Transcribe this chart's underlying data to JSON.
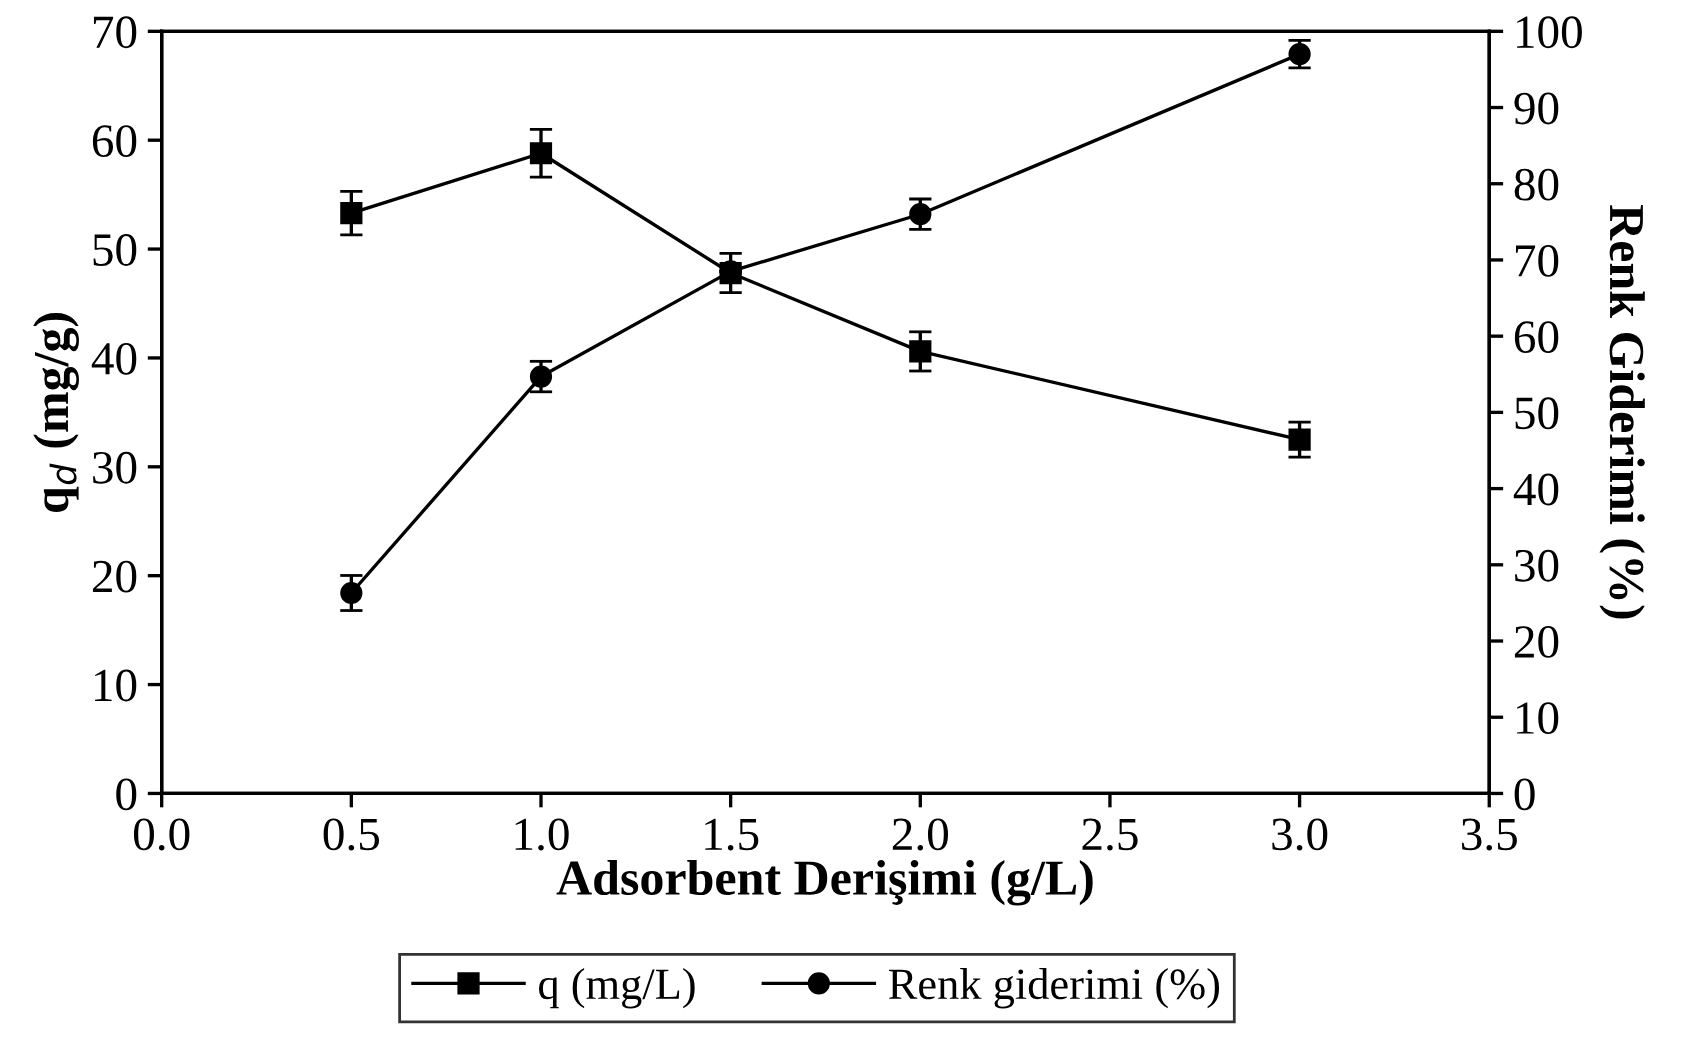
{
  "chart_data": {
    "type": "line",
    "xlabel": "Adsorbent Derişimi (g/L)",
    "ylabel": "q$_{d}$ (mg/g)",
    "y2label": "Renk Giderimi (%)",
    "xlim": [
      0,
      3.5
    ],
    "xticks": [
      {
        "value": 0,
        "label": "0.0"
      },
      {
        "value": 0.5,
        "label": "0.5"
      },
      {
        "value": 1,
        "label": "1.0"
      },
      {
        "value": 1.5,
        "label": "1.5"
      },
      {
        "value": 2,
        "label": "2.0"
      },
      {
        "value": 2.5,
        "label": "2.5"
      },
      {
        "value": 3,
        "label": "3.0"
      },
      {
        "value": 3.5,
        "label": "3.5"
      }
    ],
    "ylim": [
      0,
      70
    ],
    "yticks": [
      0,
      10,
      20,
      30,
      40,
      50,
      60,
      70
    ],
    "y2lim": [
      0,
      100
    ],
    "y2ticks": [
      0,
      10,
      20,
      30,
      40,
      50,
      60,
      70,
      80,
      90,
      100
    ],
    "x": [
      0.5,
      1.0,
      1.5,
      2.0,
      3.0
    ],
    "grid": false,
    "legend": "bottom",
    "line_style": "solid",
    "series": [
      {
        "name": "q (mg/L)",
        "color": "#000000",
        "marker": "square",
        "values": [
          53.3,
          58.8,
          47.8,
          40.6,
          32.5
        ],
        "errors": [
          2.0,
          2.2,
          1.8,
          1.8,
          1.6
        ]
      },
      {
        "name": "Renk giderimi (%)",
        "color": "#000000",
        "marker": "circle",
        "axis": "y2",
        "values": [
          26.3,
          54.7,
          68.5,
          76.0,
          97.0
        ],
        "errors": [
          2.3,
          2.0,
          null,
          2.0,
          1.8
        ]
      }
    ]
  }
}
